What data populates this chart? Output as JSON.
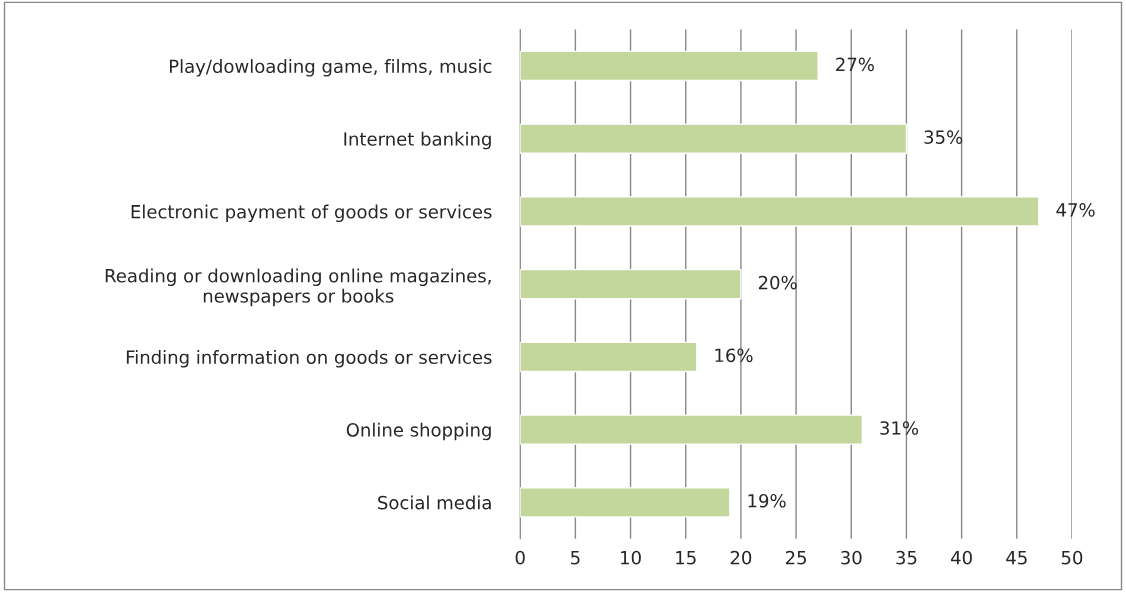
{
  "chart_data": {
    "type": "bar",
    "orientation": "horizontal",
    "categories": [
      "Play/dowloading game, films, music",
      "Internet banking",
      "Electronic payment of goods or services",
      "Reading or downloading online magazines,\nnewspapers or books",
      "Finding information on goods or services",
      "Online shopping",
      "Social media"
    ],
    "values": [
      27,
      35,
      47,
      20,
      16,
      31,
      19
    ],
    "value_labels": [
      "27%",
      "35%",
      "47%",
      "20%",
      "16%",
      "31%",
      "19%"
    ],
    "color": "#c3d69b",
    "xlim": [
      0,
      50
    ],
    "xticks": [
      0,
      5,
      10,
      15,
      20,
      25,
      30,
      35,
      40,
      45,
      50
    ],
    "grid": "x",
    "legend": false
  }
}
